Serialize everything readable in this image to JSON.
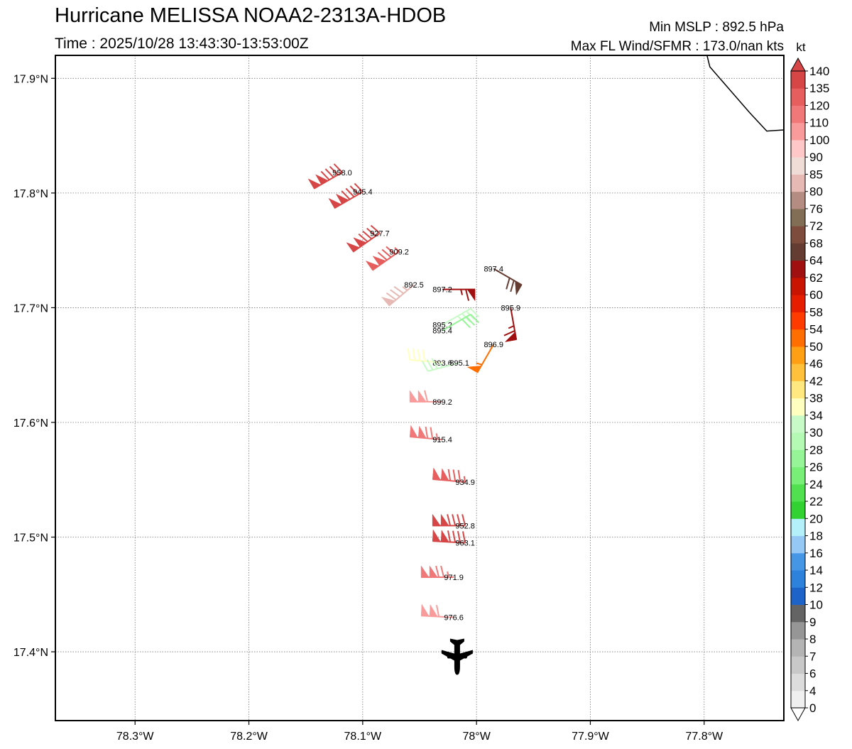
{
  "header": {
    "title": "Hurricane MELISSA NOAA2-2313A-HDOB",
    "time_label": "Time : 2025/10/28 13:43:30-13:53:00Z",
    "min_mslp": "Min MSLP : 892.5 hPa",
    "max_wind": "Max FL Wind/SFMR : 173.0/nan kts"
  },
  "chart_data": {
    "type": "scatter",
    "title": "Hurricane MELISSA NOAA2-2313A-HDOB",
    "xlim": [
      -78.37,
      -77.73
    ],
    "ylim": [
      17.34,
      17.92
    ],
    "x_ticks": [
      {
        "value": -78.3,
        "label": "78.3°W"
      },
      {
        "value": -78.2,
        "label": "78.2°W"
      },
      {
        "value": -78.1,
        "label": "78.1°W"
      },
      {
        "value": -78.0,
        "label": "78°W"
      },
      {
        "value": -77.9,
        "label": "77.9°W"
      },
      {
        "value": -77.8,
        "label": "77.8°W"
      }
    ],
    "y_ticks": [
      {
        "value": 17.4,
        "label": "17.4°N"
      },
      {
        "value": 17.5,
        "label": "17.5°N"
      },
      {
        "value": 17.6,
        "label": "17.6°N"
      },
      {
        "value": 17.7,
        "label": "17.7°N"
      },
      {
        "value": 17.8,
        "label": "17.8°N"
      },
      {
        "value": 17.9,
        "label": "17.9°N"
      }
    ],
    "grid": true,
    "coastline": [
      [
        -77.8,
        17.93
      ],
      [
        -77.795,
        17.91
      ],
      [
        -77.76,
        17.87
      ],
      [
        -77.745,
        17.854
      ],
      [
        -77.73,
        17.855
      ]
    ],
    "observations": [
      {
        "lon": -78.118,
        "lat": 17.818,
        "pressure": "958.0",
        "wind_kt": 140,
        "dir": 240
      },
      {
        "lon": -78.1,
        "lat": 17.801,
        "pressure": "945.4",
        "wind_kt": 140,
        "dir": 240
      },
      {
        "lon": -78.085,
        "lat": 17.765,
        "pressure": "927.7",
        "wind_kt": 140,
        "dir": 235
      },
      {
        "lon": -78.068,
        "lat": 17.749,
        "pressure": "909.2",
        "wind_kt": 135,
        "dir": 235
      },
      {
        "lon": -78.055,
        "lat": 17.72,
        "pressure": "892.5",
        "wind_kt": 85,
        "dir": 230
      },
      {
        "lon": -78.03,
        "lat": 17.716,
        "pressure": "897.2",
        "wind_kt": 64,
        "dir": 90
      },
      {
        "lon": -77.985,
        "lat": 17.734,
        "pressure": "897.4",
        "wind_kt": 68,
        "dir": 120
      },
      {
        "lon": -77.97,
        "lat": 17.7,
        "pressure": "895.9",
        "wind_kt": 64,
        "dir": 170
      },
      {
        "lon": -78.03,
        "lat": 17.685,
        "pressure": "895.2",
        "wind_kt": 34,
        "dir": 60
      },
      {
        "lon": -78.03,
        "lat": 17.68,
        "pressure": "895.4",
        "wind_kt": 28,
        "dir": 60
      },
      {
        "lon": -77.985,
        "lat": 17.668,
        "pressure": "896.9",
        "wind_kt": 54,
        "dir": 210
      },
      {
        "lon": -78.03,
        "lat": 17.652,
        "pressure": "893.6",
        "wind_kt": 38,
        "dir": 275
      },
      {
        "lon": -78.015,
        "lat": 17.652,
        "pressure": "895.1",
        "wind_kt": 34,
        "dir": 255
      },
      {
        "lon": -78.03,
        "lat": 17.618,
        "pressure": "899.2",
        "wind_kt": 110,
        "dir": 270
      },
      {
        "lon": -78.03,
        "lat": 17.585,
        "pressure": "915.4",
        "wind_kt": 125,
        "dir": 275
      },
      {
        "lon": -78.01,
        "lat": 17.548,
        "pressure": "934.9",
        "wind_kt": 135,
        "dir": 275
      },
      {
        "lon": -78.01,
        "lat": 17.51,
        "pressure": "952.8",
        "wind_kt": 140,
        "dir": 270
      },
      {
        "lon": -78.01,
        "lat": 17.495,
        "pressure": "963.1",
        "wind_kt": 140,
        "dir": 273
      },
      {
        "lon": -78.02,
        "lat": 17.465,
        "pressure": "971.9",
        "wind_kt": 125,
        "dir": 270
      },
      {
        "lon": -78.02,
        "lat": 17.43,
        "pressure": "976.6",
        "wind_kt": 110,
        "dir": 273
      }
    ],
    "aircraft": {
      "lon": -78.017,
      "lat": 17.396,
      "icon": "airplane-icon"
    }
  },
  "colorbar": {
    "unit_label": "kt",
    "levels": [
      "0",
      "4",
      "6",
      "7",
      "8",
      "9",
      "10",
      "12",
      "14",
      "16",
      "18",
      "20",
      "22",
      "24",
      "26",
      "28",
      "30",
      "34",
      "38",
      "42",
      "46",
      "50",
      "54",
      "58",
      "60",
      "62",
      "64",
      "68",
      "72",
      "76",
      "80",
      "85",
      "90",
      "100",
      "110",
      "120",
      "135",
      "140"
    ],
    "colors": [
      "#ffffff",
      "#f0f0f0",
      "#dcdcdc",
      "#c8c8c8",
      "#b4b4b4",
      "#969696",
      "#646464",
      "#1e64c8",
      "#2d82dc",
      "#4696e6",
      "#96c8f5",
      "#b4f0fa",
      "#32d232",
      "#50e050",
      "#78f078",
      "#96f596",
      "#b4fab4",
      "#c8fac8",
      "#ffffc0",
      "#ffe880",
      "#ffc03c",
      "#ffa014",
      "#ff6e00",
      "#ff3c00",
      "#e61e00",
      "#c81400",
      "#a01010",
      "#643c32",
      "#7d4c3c",
      "#826e55",
      "#b48c82",
      "#e6b9b4",
      "#f0dcd7",
      "#ffc8c8",
      "#fa9b9b",
      "#f07878",
      "#e65e5e",
      "#d74646"
    ],
    "over_color": "#d74646",
    "under_color": "#ffffff"
  }
}
